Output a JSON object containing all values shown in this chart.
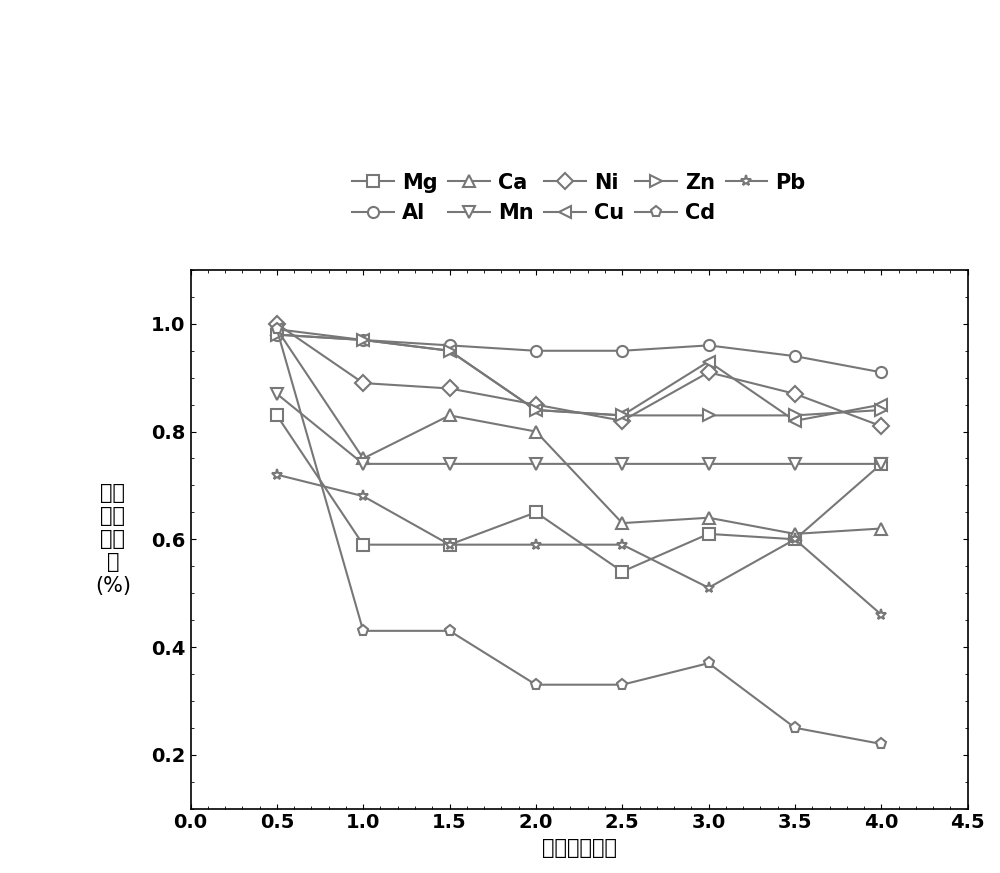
{
  "x": [
    0.5,
    1.0,
    1.5,
    2.0,
    2.5,
    3.0,
    3.5,
    4.0
  ],
  "series_order": [
    "Mg",
    "Al",
    "Ca",
    "Mn",
    "Ni",
    "Cu",
    "Zn",
    "Cd",
    "Pb"
  ],
  "series": {
    "Mg": [
      0.83,
      0.59,
      0.59,
      0.65,
      0.54,
      0.61,
      0.6,
      0.74
    ],
    "Al": [
      0.98,
      0.97,
      0.96,
      0.95,
      0.95,
      0.96,
      0.94,
      0.91
    ],
    "Ca": [
      0.99,
      0.75,
      0.83,
      0.8,
      0.63,
      0.64,
      0.61,
      0.62
    ],
    "Mn": [
      0.87,
      0.74,
      0.74,
      0.74,
      0.74,
      0.74,
      0.74,
      0.74
    ],
    "Ni": [
      1.0,
      0.89,
      0.88,
      0.85,
      0.82,
      0.91,
      0.87,
      0.81
    ],
    "Cu": [
      0.99,
      0.97,
      0.95,
      0.84,
      0.83,
      0.93,
      0.82,
      0.85
    ],
    "Zn": [
      0.98,
      0.97,
      0.95,
      0.84,
      0.83,
      0.83,
      0.83,
      0.84
    ],
    "Cd": [
      0.99,
      0.43,
      0.43,
      0.33,
      0.33,
      0.37,
      0.25,
      0.22
    ],
    "Pb": [
      0.72,
      0.68,
      0.59,
      0.59,
      0.59,
      0.51,
      0.6,
      0.46
    ]
  },
  "markers": {
    "Mg": "s",
    "Al": "o",
    "Ca": "^",
    "Mn": "v",
    "Ni": "D",
    "Cu": "<",
    "Zn": ">",
    "Cd": "p",
    "Pb": "*"
  },
  "color": "#777777",
  "xlabel": "时间（小时）",
  "ylabel_lines": [
    "离子",
    "浓度",
    "百分",
    "比",
    "(%)"
  ],
  "xlim": [
    0.0,
    4.5
  ],
  "ylim": [
    0.1,
    1.1
  ],
  "xticks": [
    0.0,
    0.5,
    1.0,
    1.5,
    2.0,
    2.5,
    3.0,
    3.5,
    4.0,
    4.5
  ],
  "yticks": [
    0.2,
    0.4,
    0.6,
    0.8,
    1.0
  ],
  "figsize": [
    10.0,
    8.73
  ],
  "dpi": 100,
  "marker_size": 8,
  "line_width": 1.5,
  "legend_font_size": 15,
  "tick_font_size": 14,
  "axis_label_font_size": 15
}
